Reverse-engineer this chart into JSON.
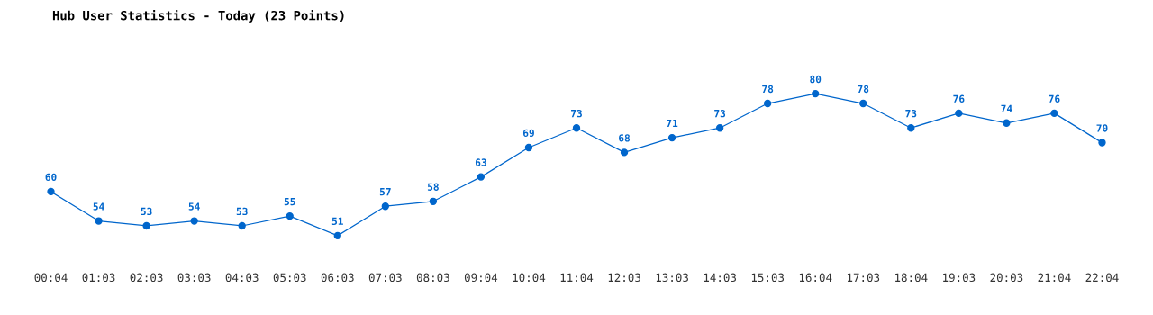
{
  "chart_data": {
    "type": "line",
    "title": "Hub User Statistics - Today (23 Points)",
    "categories": [
      "00:04",
      "01:03",
      "02:03",
      "03:03",
      "04:03",
      "05:03",
      "06:03",
      "07:03",
      "08:03",
      "09:04",
      "10:04",
      "11:04",
      "12:03",
      "13:03",
      "14:03",
      "15:03",
      "16:04",
      "17:03",
      "18:04",
      "19:03",
      "20:03",
      "21:04",
      "22:04"
    ],
    "series": [
      {
        "color": "#0066cc",
        "values": [
          60,
          54,
          53,
          54,
          53,
          55,
          51,
          57,
          58,
          63,
          69,
          73,
          68,
          71,
          73,
          78,
          80,
          78,
          73,
          76,
          74,
          76,
          70
        ]
      }
    ],
    "data_labels": true,
    "marker": "circle",
    "line_style": "solid",
    "grid": false,
    "legend": false
  }
}
